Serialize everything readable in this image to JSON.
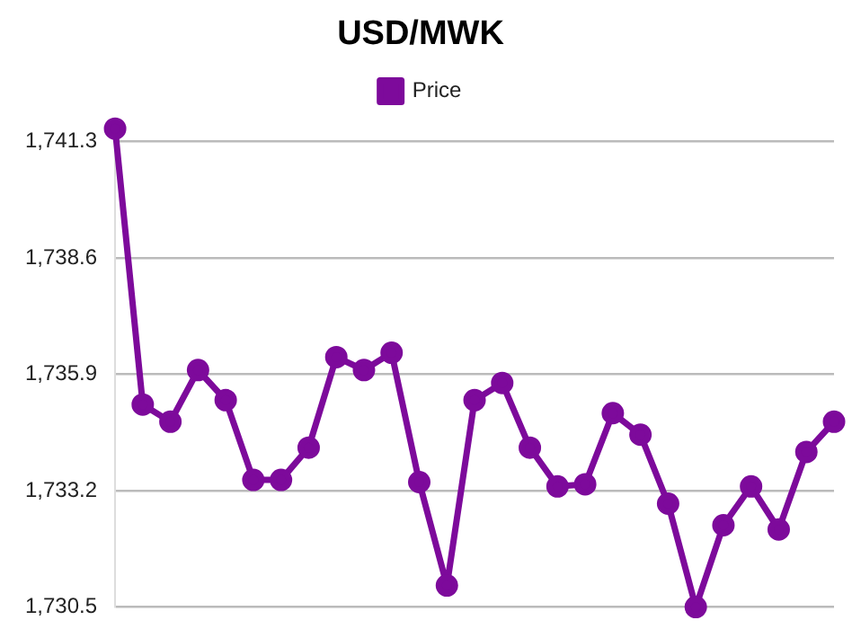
{
  "chart_data": {
    "type": "line",
    "title": "USD/MWK",
    "categories": [
      null,
      null,
      null,
      null,
      null,
      null,
      null,
      null,
      null,
      null,
      null,
      null,
      null,
      null,
      null,
      null,
      null,
      null,
      null,
      null,
      null,
      null,
      null,
      null,
      null,
      null,
      null
    ],
    "series": [
      {
        "name": "Price",
        "color": "#7d0a9b",
        "values": [
          1741.6,
          1735.2,
          1734.8,
          1736.0,
          1735.3,
          1733.45,
          1733.45,
          1734.2,
          1736.3,
          1736.0,
          1736.4,
          1733.4,
          1731.0,
          1735.3,
          1735.7,
          1734.2,
          1733.3,
          1733.35,
          1735.0,
          1734.5,
          1732.9,
          1730.5,
          1732.4,
          1733.3,
          1732.3,
          1734.1,
          1734.8
        ]
      }
    ],
    "ylim": [
      1730.5,
      1741.8
    ],
    "yticks": [
      {
        "value": 1730.5,
        "label": "1,730.5"
      },
      {
        "value": 1733.2,
        "label": "1,733.2"
      },
      {
        "value": 1735.9,
        "label": "1,735.9"
      },
      {
        "value": 1738.6,
        "label": "1,738.6"
      },
      {
        "value": 1741.3,
        "label": "1,741.3"
      }
    ],
    "grid": "y",
    "legend": "top",
    "marker": "circle",
    "line_style": "solid",
    "tick_labels": "y"
  }
}
